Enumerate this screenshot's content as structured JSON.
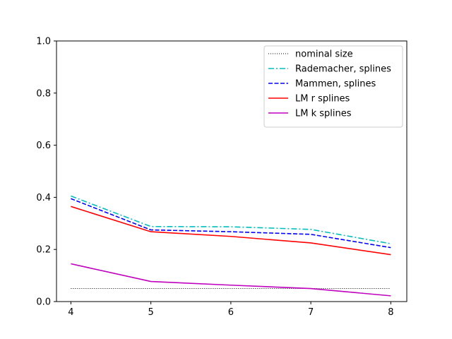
{
  "chart_data": {
    "type": "line",
    "title": "",
    "xlabel": "",
    "ylabel": "",
    "x": [
      4,
      5,
      6,
      7,
      8
    ],
    "xlim": [
      3.82,
      8.2
    ],
    "ylim": [
      0,
      1
    ],
    "xticks": [
      "4",
      "5",
      "6",
      "7",
      "8"
    ],
    "yticks": [
      "0.0",
      "0.2",
      "0.4",
      "0.6",
      "0.8",
      "1.0"
    ],
    "grid": false,
    "legend_position": "top-right",
    "series": [
      {
        "name": "nominal size",
        "values": [
          0.05,
          0.05,
          0.05,
          0.05,
          0.05
        ],
        "color": "#000000",
        "style": "dotted"
      },
      {
        "name": "Rademacher, splines",
        "values": [
          0.405,
          0.288,
          0.287,
          0.277,
          0.222
        ],
        "color": "#00bfbf",
        "style": "dashdot"
      },
      {
        "name": "Mammen, splines",
        "values": [
          0.395,
          0.275,
          0.268,
          0.258,
          0.207
        ],
        "color": "#0000ff",
        "style": "dashed"
      },
      {
        "name": "LM r splines",
        "values": [
          0.365,
          0.268,
          0.25,
          0.225,
          0.18
        ],
        "color": "#ff0000",
        "style": "solid"
      },
      {
        "name": "LM k splines",
        "values": [
          0.145,
          0.077,
          0.063,
          0.05,
          0.022
        ],
        "color": "#bf00bf",
        "style": "solid"
      }
    ]
  }
}
